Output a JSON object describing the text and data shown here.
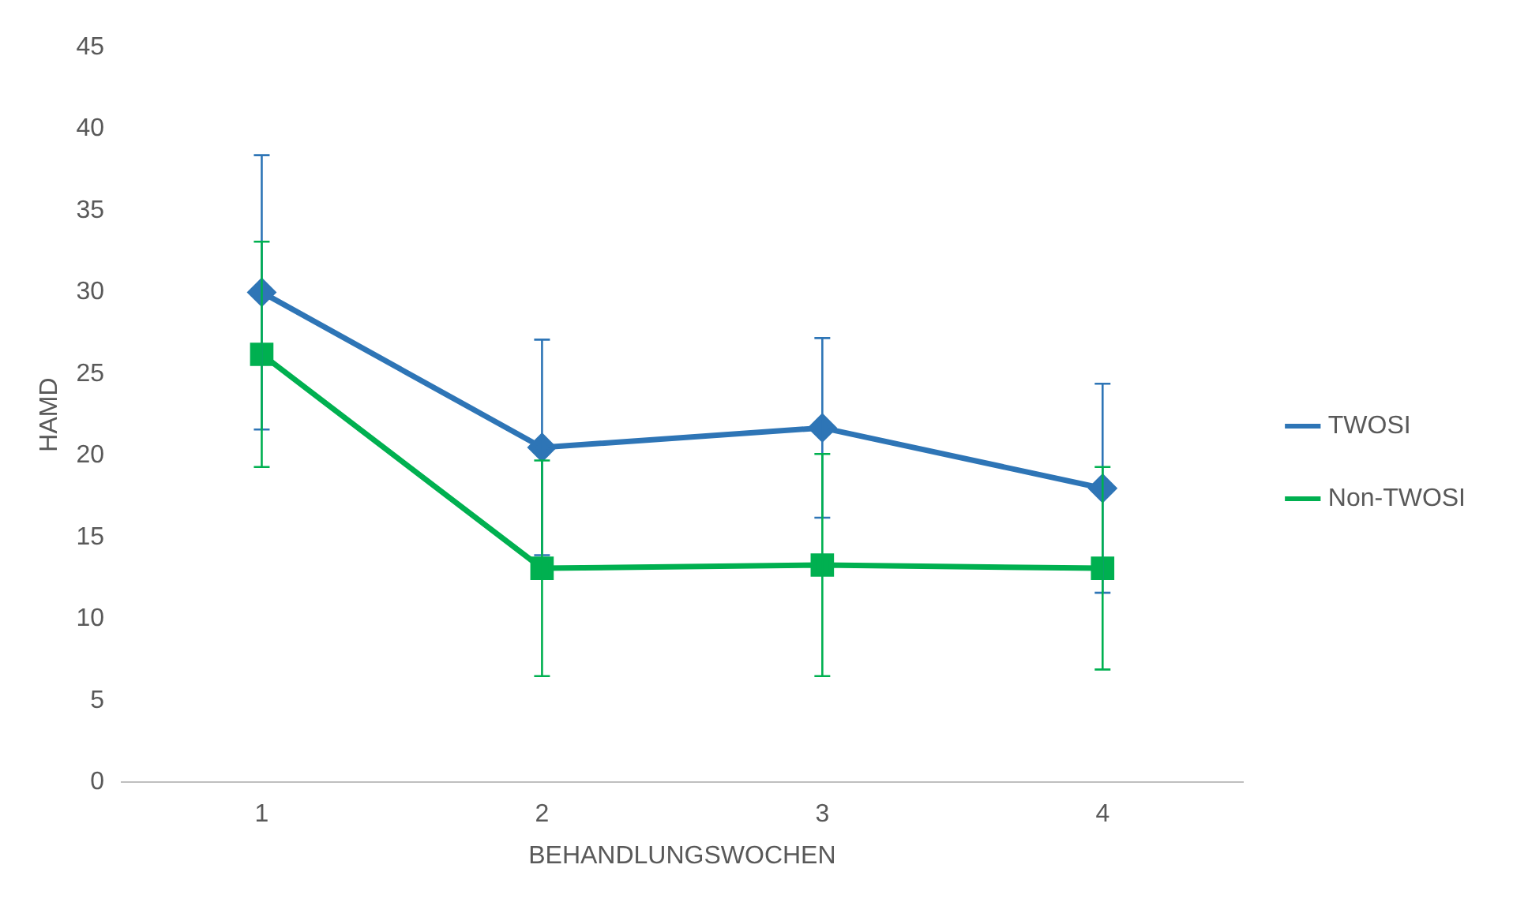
{
  "chart_data": {
    "type": "line",
    "xlabel": "BEHANDLUNGSWOCHEN",
    "ylabel": "HAMD",
    "categories": [
      "1",
      "2",
      "3",
      "4"
    ],
    "series": [
      {
        "name": "TWOSI",
        "color": "#2e75b6",
        "marker": "diamond",
        "values": [
          30,
          20.5,
          21.7,
          18
        ],
        "errors": [
          8.4,
          6.6,
          5.5,
          6.4
        ]
      },
      {
        "name": "Non-TWOSI",
        "color": "#00b050",
        "marker": "square",
        "values": [
          26.2,
          13.1,
          13.3,
          13.1
        ],
        "errors": [
          6.9,
          6.6,
          6.8,
          6.2
        ]
      }
    ],
    "ylim": [
      0,
      45
    ],
    "yticks": [
      0,
      5,
      10,
      15,
      20,
      25,
      30,
      35,
      40,
      45
    ],
    "grid": false,
    "legend": "right"
  }
}
